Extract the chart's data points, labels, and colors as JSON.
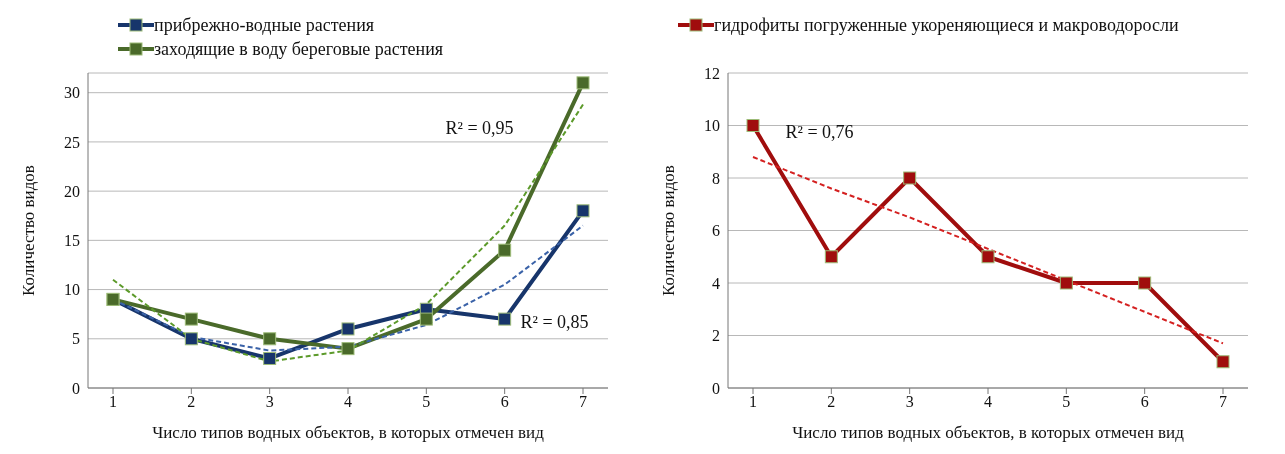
{
  "chart_data": [
    {
      "type": "line",
      "xlabel": "Число типов водных объектов, в которых отмечен вид",
      "ylabel": "Количество видов",
      "categories": [
        "1",
        "2",
        "3",
        "4",
        "5",
        "6",
        "7"
      ],
      "ylim": [
        0,
        32
      ],
      "yticks": [
        0,
        5,
        10,
        15,
        20,
        25,
        30
      ],
      "grid": "y",
      "legend": "top",
      "marker": "square",
      "series": [
        {
          "name": "прибрежно-водные растения",
          "color": "#17356b",
          "values": [
            9,
            5,
            3,
            6,
            8,
            7,
            18
          ]
        },
        {
          "name": "заходящие в воду береговые растения",
          "color": "#4a6a2a",
          "values": [
            9,
            7,
            5,
            4,
            7,
            14,
            31
          ]
        },
        {
          "type": "line",
          "color": "#3a62a8",
          "marker": "none",
          "line_style": "dashed",
          "values": [
            9,
            5.2,
            3.8,
            4.2,
            6.4,
            10.5,
            16.5
          ]
        },
        {
          "type": "line",
          "color": "#5c9a2a",
          "marker": "none",
          "line_style": "dashed",
          "values": [
            11,
            5,
            2.7,
            3.8,
            8.5,
            16.5,
            28.8
          ]
        }
      ],
      "annotations": [
        "R² = 0,95",
        "R² = 0,85"
      ]
    },
    {
      "type": "line",
      "xlabel": "Число типов водных объектов, в которых отмечен вид",
      "ylabel": "Количество видов",
      "categories": [
        "1",
        "2",
        "3",
        "4",
        "5",
        "6",
        "7"
      ],
      "ylim": [
        0,
        12
      ],
      "yticks": [
        0,
        2,
        4,
        6,
        8,
        10,
        12
      ],
      "grid": "y",
      "legend": "top",
      "marker": "square",
      "series": [
        {
          "name": "гидрофиты погруженные укореняющиеся и макроводоросли",
          "color": "#a00d0d",
          "values": [
            10,
            5,
            8,
            5,
            4,
            4,
            1
          ]
        },
        {
          "type": "line",
          "color": "#d42020",
          "marker": "none",
          "line_style": "dashed",
          "values": [
            8.8,
            7.6,
            6.5,
            5.3,
            4.1,
            2.9,
            1.7
          ]
        }
      ],
      "annotations": [
        "R² = 0,76"
      ]
    }
  ]
}
